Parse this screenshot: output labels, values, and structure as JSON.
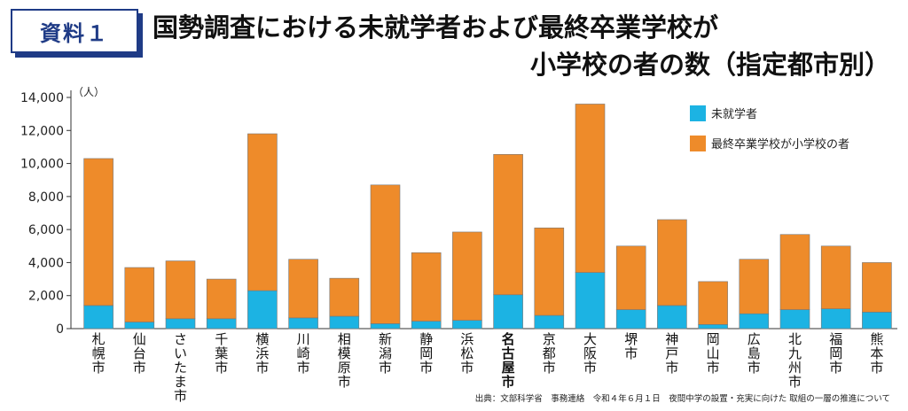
{
  "badge": "資料１",
  "title_line1": "国勢調査における未就学者および最終卒業学校が",
  "title_line2": "小学校の者の数（指定都市別）",
  "unit": "（人）",
  "source": "出典：文部科学省　事務連絡　令和４年６月１日　夜間中学の設置・充実に向けた 取組の一層の推進について",
  "colors": {
    "series1": "#1cb3e3",
    "series2": "#ee8b2a",
    "badge": "#1f3b86",
    "axis": "#333333"
  },
  "chart_data": {
    "type": "bar",
    "stacked": true,
    "categories": [
      "札幌市",
      "仙台市",
      "さいたま市",
      "千葉市",
      "横浜市",
      "川崎市",
      "相模原市",
      "新潟市",
      "静岡市",
      "浜松市",
      "名古屋市",
      "京都市",
      "大阪市",
      "堺市",
      "神戸市",
      "岡山市",
      "広島市",
      "北九州市",
      "福岡市",
      "熊本市"
    ],
    "highlighted_category": "名古屋市",
    "series": [
      {
        "name": "未就学者",
        "values": [
          1400,
          400,
          600,
          600,
          2300,
          650,
          750,
          300,
          450,
          500,
          2050,
          800,
          3400,
          1150,
          1400,
          250,
          900,
          1150,
          1200,
          1000
        ]
      },
      {
        "name": "最終卒業学校が小学校の者",
        "values": [
          8900,
          3300,
          3500,
          2400,
          9500,
          3550,
          2300,
          8400,
          4150,
          5350,
          8500,
          5300,
          10200,
          3850,
          5200,
          2600,
          3300,
          4550,
          3800,
          3000
        ]
      }
    ],
    "yticks": [
      "0",
      "2,000",
      "4,000",
      "6,000",
      "8,000",
      "10,000",
      "12,000",
      "14,000"
    ],
    "ylim": [
      0,
      14000
    ],
    "legend_position": "top-right"
  }
}
